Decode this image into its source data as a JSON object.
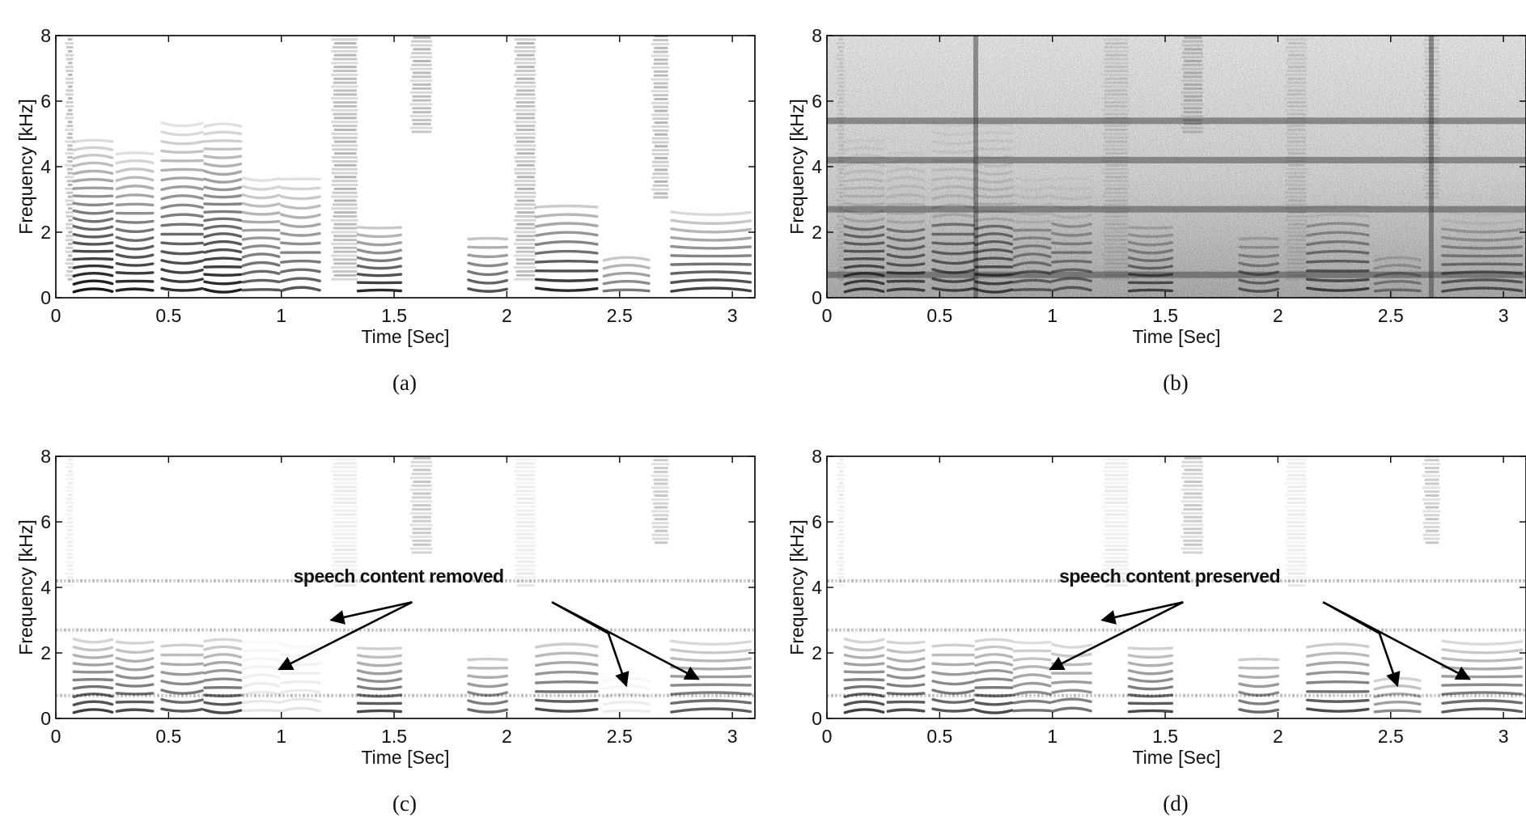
{
  "chart_data": [
    {
      "type": "heatmap",
      "panel_label": "(a)",
      "xlabel": "Time [Sec]",
      "ylabel": "Frequency [kHz]",
      "xlim": [
        0,
        3.1
      ],
      "ylim": [
        0,
        8
      ],
      "xticks": [
        "0",
        "0.5",
        "1",
        "1.5",
        "2",
        "2.5",
        "3"
      ],
      "yticks": [
        "0",
        "2",
        "4",
        "6",
        "8"
      ],
      "colormap": "grayscale (dark = high energy)",
      "background": "clean",
      "voiced_segments": [
        {
          "t_start": 0.08,
          "t_end": 0.25,
          "f_max": 5.0,
          "strength": 0.95
        },
        {
          "t_start": 0.27,
          "t_end": 0.43,
          "f_max": 4.5,
          "strength": 0.9
        },
        {
          "t_start": 0.47,
          "t_end": 0.65,
          "f_max": 5.5,
          "strength": 0.85
        },
        {
          "t_start": 0.66,
          "t_end": 0.82,
          "f_max": 5.5,
          "strength": 0.9
        },
        {
          "t_start": 0.83,
          "t_end": 0.99,
          "f_max": 3.8,
          "strength": 0.7
        },
        {
          "t_start": 1.0,
          "t_end": 1.17,
          "f_max": 3.8,
          "strength": 0.7
        },
        {
          "t_start": 1.34,
          "t_end": 1.53,
          "f_max": 2.2,
          "strength": 0.9
        },
        {
          "t_start": 1.83,
          "t_end": 2.0,
          "f_max": 2.0,
          "strength": 0.75
        },
        {
          "t_start": 2.13,
          "t_end": 2.4,
          "f_max": 3.0,
          "strength": 0.9
        },
        {
          "t_start": 2.43,
          "t_end": 2.63,
          "f_max": 1.2,
          "strength": 0.6
        },
        {
          "t_start": 2.73,
          "t_end": 3.08,
          "f_max": 2.6,
          "strength": 0.8
        }
      ],
      "fricatives": [
        {
          "t_start": 0.04,
          "t_end": 0.08,
          "f_low": 0.5,
          "f_high": 8.0
        },
        {
          "t_start": 1.22,
          "t_end": 1.34,
          "f_low": 0.5,
          "f_high": 8.0
        },
        {
          "t_start": 1.57,
          "t_end": 1.67,
          "f_low": 5.0,
          "f_high": 8.0
        },
        {
          "t_start": 2.03,
          "t_end": 2.13,
          "f_low": 0.5,
          "f_high": 8.0
        },
        {
          "t_start": 2.64,
          "t_end": 2.72,
          "f_low": 3.0,
          "f_high": 8.0
        }
      ]
    },
    {
      "type": "heatmap",
      "panel_label": "(b)",
      "xlabel": "Time [Sec]",
      "ylabel": "Frequency [kHz]",
      "xlim": [
        0,
        3.1
      ],
      "ylim": [
        0,
        8
      ],
      "xticks": [
        "0",
        "0.5",
        "1",
        "1.5",
        "2",
        "2.5",
        "3"
      ],
      "yticks": [
        "0",
        "2",
        "4",
        "6",
        "8"
      ],
      "colormap": "grayscale (dark = high energy)",
      "background": "noisy",
      "tonal_noise_bands_khz": [
        0.7,
        2.7,
        4.2,
        5.4
      ],
      "transient_clicks_sec": [
        0.66,
        2.68
      ]
    },
    {
      "type": "heatmap",
      "panel_label": "(c)",
      "xlabel": "Time [Sec]",
      "ylabel": "Frequency [kHz]",
      "xlim": [
        0,
        3.1
      ],
      "ylim": [
        0,
        8
      ],
      "xticks": [
        "0",
        "0.5",
        "1",
        "1.5",
        "2",
        "2.5",
        "3"
      ],
      "yticks": [
        "0",
        "2",
        "4",
        "6",
        "8"
      ],
      "colormap": "grayscale (dark = high energy)",
      "background": "enhanced",
      "annotation": {
        "text": "speech content removed",
        "text_anchor_t": 1.52,
        "text_anchor_f": 4.0,
        "arrow_targets": [
          [
            1.22,
            3.0
          ],
          [
            0.99,
            1.5
          ],
          [
            2.53,
            1.0
          ],
          [
            2.85,
            1.2
          ]
        ]
      }
    },
    {
      "type": "heatmap",
      "panel_label": "(d)",
      "xlabel": "Time [Sec]",
      "ylabel": "Frequency [kHz]",
      "xlim": [
        0,
        3.1
      ],
      "ylim": [
        0,
        8
      ],
      "xticks": [
        "0",
        "0.5",
        "1",
        "1.5",
        "2",
        "2.5",
        "3"
      ],
      "yticks": [
        "0",
        "2",
        "4",
        "6",
        "8"
      ],
      "colormap": "grayscale (dark = high energy)",
      "background": "enhanced",
      "annotation": {
        "text": "speech content preserved",
        "text_anchor_t": 1.52,
        "text_anchor_f": 4.0,
        "arrow_targets": [
          [
            1.22,
            3.0
          ],
          [
            0.99,
            1.5
          ],
          [
            2.53,
            1.0
          ],
          [
            2.85,
            1.2
          ]
        ]
      }
    }
  ]
}
